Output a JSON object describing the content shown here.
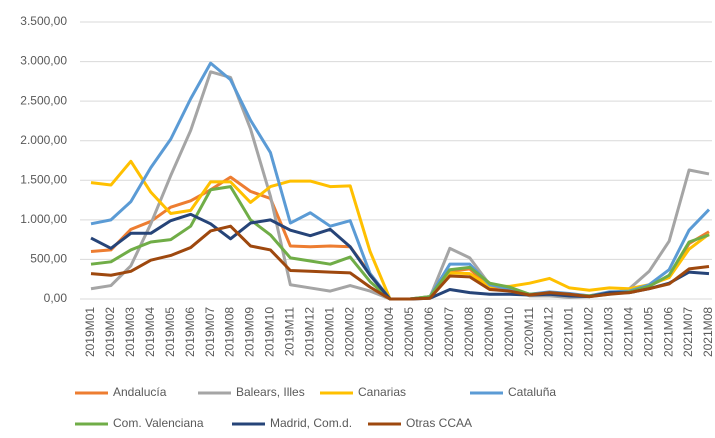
{
  "chart_data": {
    "type": "line",
    "categories": [
      "2019M01",
      "2019M02",
      "2019M03",
      "2019M04",
      "2019M05",
      "2019M06",
      "2019M07",
      "2019M08",
      "2019M09",
      "2019M10",
      "2019M11",
      "2019M12",
      "2020M01",
      "2020M02",
      "2020M03",
      "2020M04",
      "2020M05",
      "2020M06",
      "2020M07",
      "2020M08",
      "2020M09",
      "2020M10",
      "2020M11",
      "2020M12",
      "2021M01",
      "2021M02",
      "2021M03",
      "2021M04",
      "2021M05",
      "2021M06",
      "2021M07",
      "2021M08"
    ],
    "series": [
      {
        "name": "Andalucía",
        "color": "#ED7D31",
        "values": [
          600,
          620,
          880,
          980,
          1160,
          1240,
          1380,
          1540,
          1360,
          1270,
          670,
          660,
          670,
          660,
          320,
          0,
          0,
          20,
          350,
          380,
          150,
          120,
          60,
          80,
          60,
          40,
          80,
          100,
          170,
          280,
          700,
          850
        ]
      },
      {
        "name": "Balears, Illes",
        "color": "#A5A5A5",
        "values": [
          130,
          170,
          420,
          950,
          1560,
          2130,
          2870,
          2800,
          2150,
          1300,
          180,
          140,
          100,
          170,
          100,
          0,
          0,
          20,
          640,
          520,
          180,
          120,
          40,
          40,
          20,
          30,
          60,
          130,
          350,
          730,
          1630,
          1580
        ]
      },
      {
        "name": "Canarias",
        "color": "#FFC000",
        "values": [
          1470,
          1440,
          1740,
          1350,
          1080,
          1120,
          1480,
          1480,
          1220,
          1420,
          1490,
          1490,
          1420,
          1430,
          600,
          0,
          0,
          30,
          330,
          320,
          160,
          160,
          200,
          260,
          140,
          110,
          140,
          130,
          180,
          270,
          630,
          820
        ]
      },
      {
        "name": "Cataluña",
        "color": "#5B9BD5",
        "values": [
          950,
          1000,
          1230,
          1660,
          2020,
          2530,
          2980,
          2770,
          2260,
          1850,
          960,
          1090,
          920,
          990,
          320,
          0,
          0,
          30,
          440,
          440,
          180,
          130,
          60,
          90,
          70,
          40,
          90,
          100,
          180,
          370,
          870,
          1130
        ]
      },
      {
        "name": "Com. Valenciana",
        "color": "#70AD47",
        "values": [
          440,
          470,
          620,
          720,
          750,
          920,
          1380,
          1420,
          1000,
          810,
          520,
          480,
          440,
          530,
          220,
          0,
          0,
          30,
          370,
          400,
          200,
          150,
          60,
          70,
          50,
          40,
          70,
          90,
          160,
          300,
          720,
          810
        ]
      },
      {
        "name": "Madrid, Com.d.",
        "color": "#264478",
        "values": [
          770,
          640,
          830,
          830,
          990,
          1070,
          950,
          760,
          960,
          1000,
          870,
          800,
          880,
          660,
          300,
          0,
          0,
          10,
          120,
          80,
          60,
          60,
          50,
          60,
          40,
          30,
          80,
          80,
          130,
          200,
          340,
          320
        ]
      },
      {
        "name": "Otras CCAA",
        "color": "#9E480E",
        "values": [
          320,
          300,
          350,
          490,
          550,
          650,
          860,
          920,
          670,
          620,
          360,
          350,
          340,
          330,
          150,
          0,
          0,
          10,
          290,
          280,
          120,
          100,
          50,
          80,
          60,
          30,
          60,
          80,
          130,
          190,
          380,
          410
        ]
      }
    ],
    "ylim": [
      0,
      3500
    ],
    "yticks": [
      {
        "value": 0,
        "label": "0,00"
      },
      {
        "value": 500,
        "label": "500,00"
      },
      {
        "value": 1000,
        "label": "1.000,00"
      },
      {
        "value": 1500,
        "label": "1.500,00"
      },
      {
        "value": 2000,
        "label": "2.000,00"
      },
      {
        "value": 2500,
        "label": "2.500,00"
      },
      {
        "value": 3000,
        "label": "3.000,00"
      },
      {
        "value": 3500,
        "label": "3.500,00"
      }
    ],
    "grid": true,
    "legend": "bottom"
  }
}
